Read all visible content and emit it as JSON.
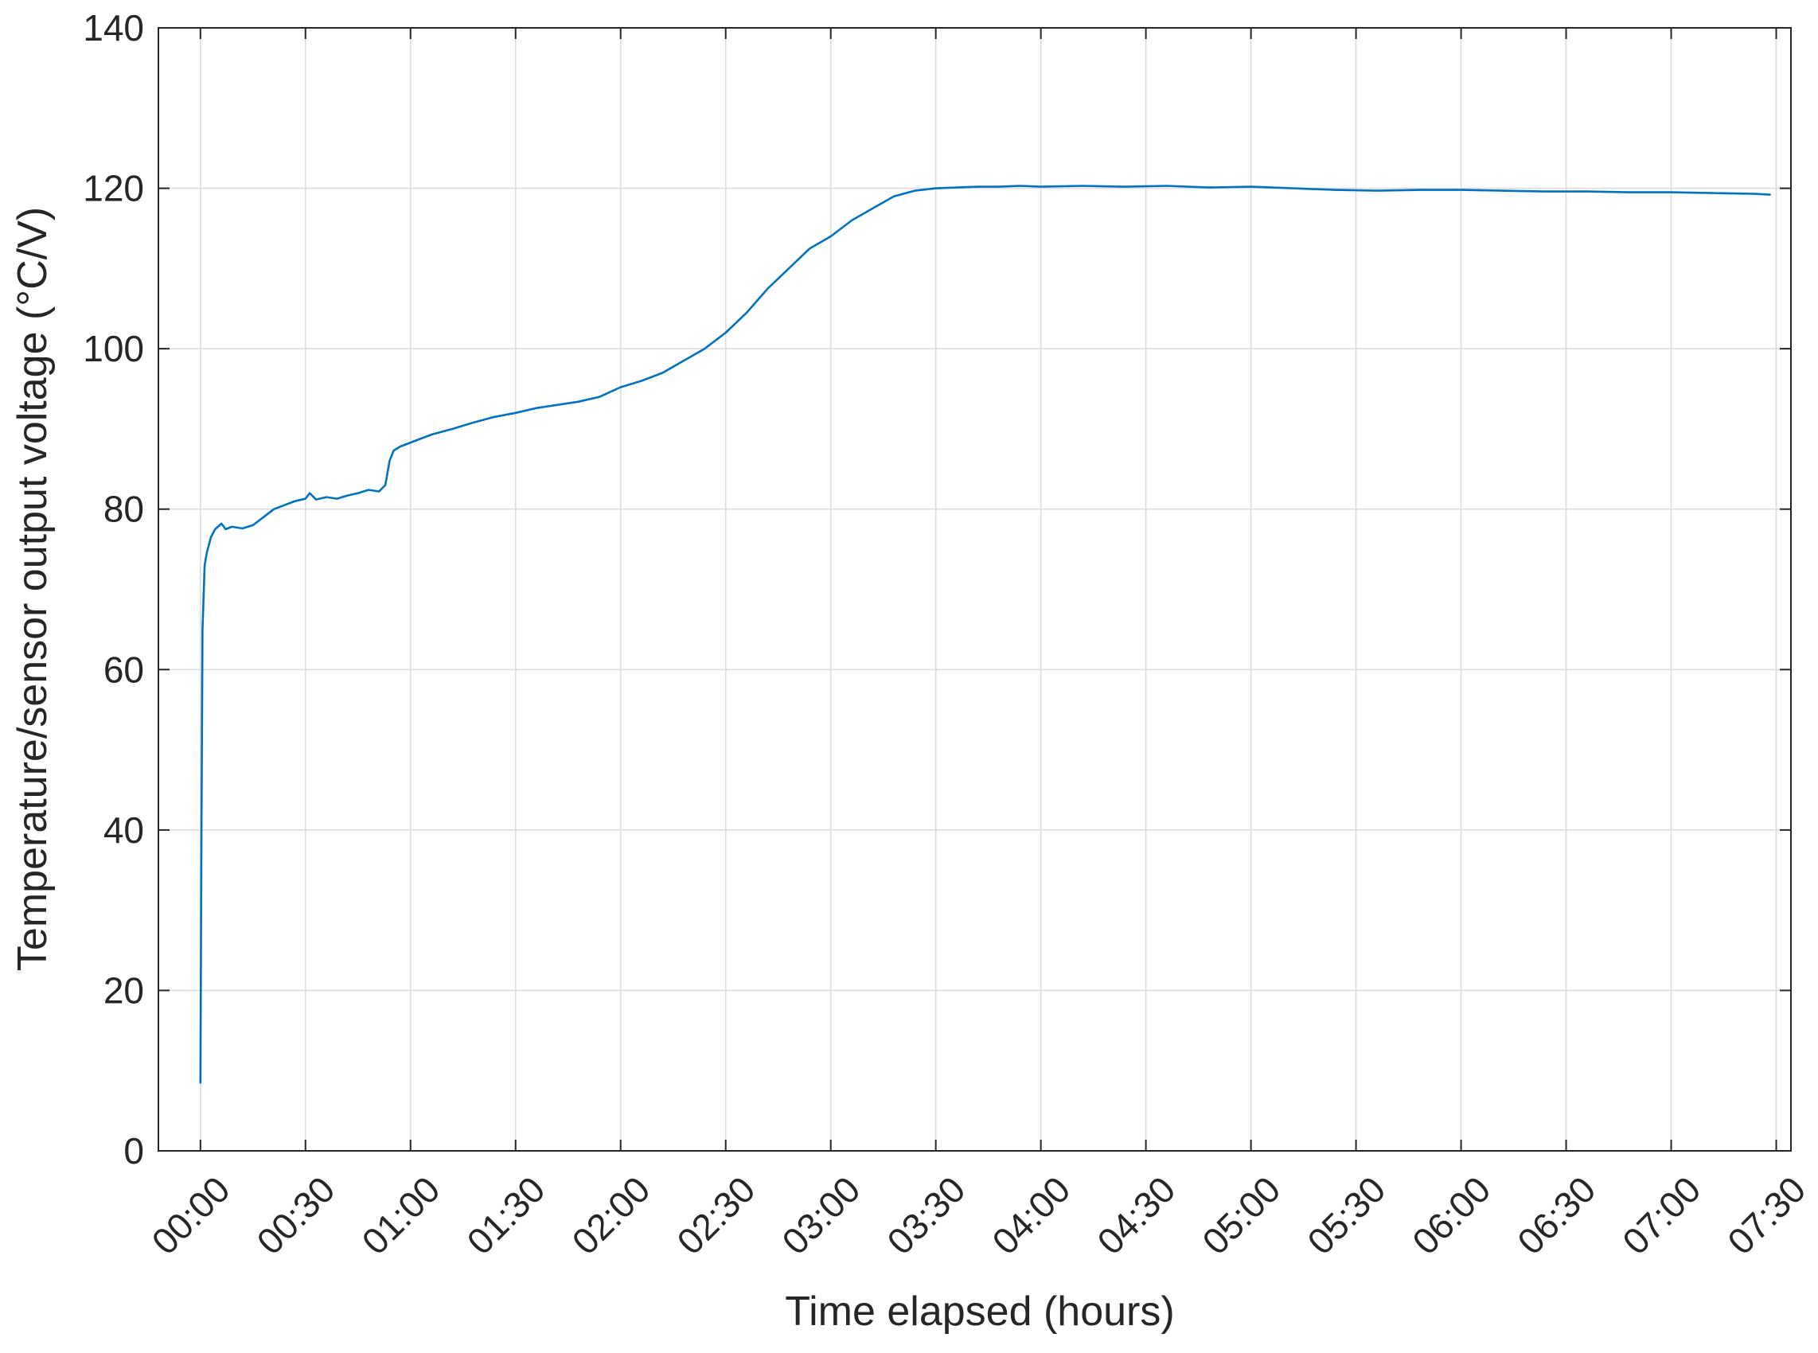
{
  "chart_data": {
    "type": "line",
    "xlabel": "Time elapsed (hours)",
    "ylabel": "Temperature/sensor output voltage (°C/V)",
    "xlim": [
      -0.2,
      7.57
    ],
    "ylim": [
      0,
      140
    ],
    "grid": true,
    "y_ticks": [
      0,
      20,
      40,
      60,
      80,
      100,
      120,
      140
    ],
    "x_ticks": [
      {
        "value": 0,
        "label": "00:00"
      },
      {
        "value": 0.5,
        "label": "00:30"
      },
      {
        "value": 1,
        "label": "01:00"
      },
      {
        "value": 1.5,
        "label": "01:30"
      },
      {
        "value": 2,
        "label": "02:00"
      },
      {
        "value": 2.5,
        "label": "02:30"
      },
      {
        "value": 3,
        "label": "03:00"
      },
      {
        "value": 3.5,
        "label": "03:30"
      },
      {
        "value": 4,
        "label": "04:00"
      },
      {
        "value": 4.5,
        "label": "04:30"
      },
      {
        "value": 5,
        "label": "05:00"
      },
      {
        "value": 5.5,
        "label": "05:30"
      },
      {
        "value": 6,
        "label": "06:00"
      },
      {
        "value": 6.5,
        "label": "06:30"
      },
      {
        "value": 7,
        "label": "07:00"
      },
      {
        "value": 7.5,
        "label": "07:30"
      }
    ],
    "series": [
      {
        "color": "#0072BD",
        "x": [
          0,
          0.005,
          0.01,
          0.02,
          0.03,
          0.05,
          0.07,
          0.1,
          0.12,
          0.15,
          0.2,
          0.25,
          0.3,
          0.35,
          0.4,
          0.45,
          0.5,
          0.52,
          0.55,
          0.6,
          0.65,
          0.7,
          0.75,
          0.8,
          0.85,
          0.88,
          0.9,
          0.92,
          0.95,
          1.0,
          1.05,
          1.1,
          1.2,
          1.3,
          1.4,
          1.5,
          1.6,
          1.7,
          1.8,
          1.9,
          2.0,
          2.1,
          2.2,
          2.3,
          2.4,
          2.5,
          2.6,
          2.7,
          2.8,
          2.9,
          3.0,
          3.1,
          3.2,
          3.3,
          3.4,
          3.5,
          3.6,
          3.7,
          3.8,
          3.9,
          4.0,
          4.2,
          4.4,
          4.6,
          4.8,
          5.0,
          5.2,
          5.4,
          5.6,
          5.8,
          6.0,
          6.2,
          6.4,
          6.6,
          6.8,
          7.0,
          7.2,
          7.4,
          7.47
        ],
        "values": [
          8.5,
          40,
          65,
          73,
          74.5,
          76.5,
          77.5,
          78.2,
          77.5,
          77.8,
          77.6,
          78,
          79,
          80,
          80.5,
          81,
          81.3,
          82,
          81.2,
          81.5,
          81.3,
          81.7,
          82,
          82.4,
          82.2,
          83,
          86,
          87.3,
          87.8,
          88.3,
          88.8,
          89.3,
          90,
          90.8,
          91.5,
          92,
          92.6,
          93,
          93.4,
          94,
          95.2,
          96,
          97,
          98.5,
          100,
          102,
          104.5,
          107.5,
          110,
          112.5,
          114,
          116,
          117.5,
          119,
          119.7,
          120,
          120.1,
          120.2,
          120.2,
          120.3,
          120.2,
          120.3,
          120.2,
          120.3,
          120.1,
          120.2,
          120,
          119.8,
          119.7,
          119.8,
          119.8,
          119.7,
          119.6,
          119.6,
          119.5,
          119.5,
          119.4,
          119.3,
          119.2
        ]
      }
    ]
  }
}
